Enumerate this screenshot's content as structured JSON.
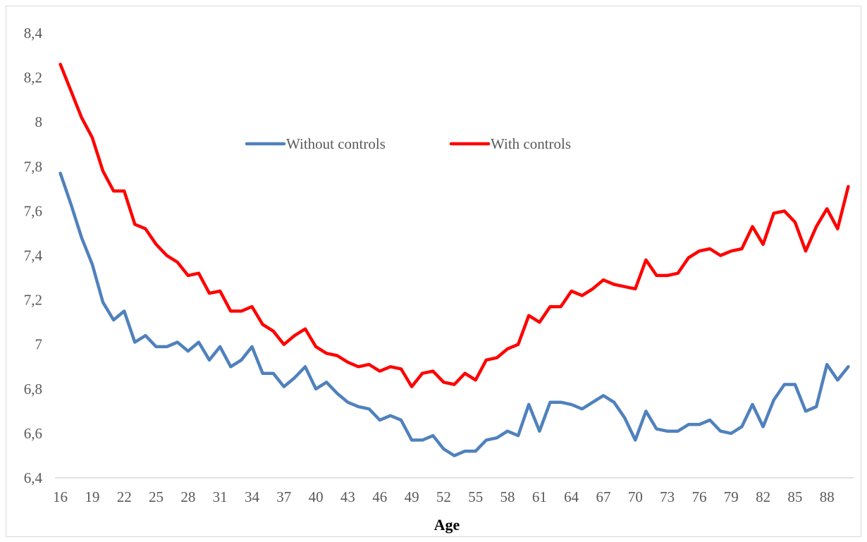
{
  "chart_data": {
    "type": "line",
    "title": "",
    "xlabel": "Age",
    "ylabel": "",
    "ylim": [
      6.4,
      8.4
    ],
    "yticks": [
      "6,4",
      "6,6",
      "6,8",
      "7",
      "7,2",
      "7,4",
      "7,6",
      "7,8",
      "8",
      "8,2",
      "8,4"
    ],
    "ytick_values": [
      6.4,
      6.6,
      6.8,
      7.0,
      7.2,
      7.4,
      7.6,
      7.8,
      8.0,
      8.2,
      8.4
    ],
    "x": [
      16,
      17,
      18,
      19,
      20,
      21,
      22,
      23,
      24,
      25,
      26,
      27,
      28,
      29,
      30,
      31,
      32,
      33,
      34,
      35,
      36,
      37,
      38,
      39,
      40,
      41,
      42,
      43,
      44,
      45,
      46,
      47,
      48,
      49,
      50,
      51,
      52,
      53,
      54,
      55,
      56,
      57,
      58,
      59,
      60,
      61,
      62,
      63,
      64,
      65,
      66,
      67,
      68,
      69,
      70,
      71,
      72,
      73,
      74,
      75,
      76,
      77,
      78,
      79,
      80,
      81,
      82,
      83,
      84,
      85,
      86,
      87,
      88,
      89,
      90
    ],
    "xtick_labels": [
      "16",
      "19",
      "22",
      "25",
      "28",
      "31",
      "34",
      "37",
      "40",
      "43",
      "46",
      "49",
      "52",
      "55",
      "58",
      "61",
      "64",
      "67",
      "70",
      "73",
      "76",
      "79",
      "82",
      "85",
      "88"
    ],
    "xtick_positions": [
      16,
      19,
      22,
      25,
      28,
      31,
      34,
      37,
      40,
      43,
      46,
      49,
      52,
      55,
      58,
      61,
      64,
      67,
      70,
      73,
      76,
      79,
      82,
      85,
      88
    ],
    "grid": false,
    "legend_position": "center",
    "series": [
      {
        "name": "Without controls",
        "color": "#4f81bd",
        "values": [
          7.77,
          7.63,
          7.48,
          7.36,
          7.19,
          7.11,
          7.15,
          7.01,
          7.04,
          6.99,
          6.99,
          7.01,
          6.97,
          7.01,
          6.93,
          6.99,
          6.9,
          6.93,
          6.99,
          6.87,
          6.87,
          6.81,
          6.85,
          6.9,
          6.8,
          6.83,
          6.78,
          6.74,
          6.72,
          6.71,
          6.66,
          6.68,
          6.66,
          6.57,
          6.57,
          6.59,
          6.53,
          6.5,
          6.52,
          6.52,
          6.57,
          6.58,
          6.61,
          6.59,
          6.73,
          6.61,
          6.74,
          6.74,
          6.73,
          6.71,
          6.74,
          6.77,
          6.74,
          6.67,
          6.57,
          6.7,
          6.62,
          6.61,
          6.61,
          6.64,
          6.64,
          6.66,
          6.61,
          6.6,
          6.63,
          6.73,
          6.63,
          6.75,
          6.82,
          6.82,
          6.7,
          6.72,
          6.91,
          6.84,
          6.9
        ]
      },
      {
        "name": "With controls",
        "color": "#ff0000",
        "values": [
          8.26,
          8.14,
          8.02,
          7.93,
          7.78,
          7.69,
          7.69,
          7.54,
          7.52,
          7.45,
          7.4,
          7.37,
          7.31,
          7.32,
          7.23,
          7.24,
          7.15,
          7.15,
          7.17,
          7.09,
          7.06,
          7.0,
          7.04,
          7.07,
          6.99,
          6.96,
          6.95,
          6.92,
          6.9,
          6.91,
          6.88,
          6.9,
          6.89,
          6.81,
          6.87,
          6.88,
          6.83,
          6.82,
          6.87,
          6.84,
          6.93,
          6.94,
          6.98,
          7.0,
          7.13,
          7.1,
          7.17,
          7.17,
          7.24,
          7.22,
          7.25,
          7.29,
          7.27,
          7.26,
          7.25,
          7.38,
          7.31,
          7.31,
          7.32,
          7.39,
          7.42,
          7.43,
          7.4,
          7.42,
          7.43,
          7.53,
          7.45,
          7.59,
          7.6,
          7.55,
          7.42,
          7.53,
          7.61,
          7.52,
          7.71
        ]
      }
    ]
  }
}
